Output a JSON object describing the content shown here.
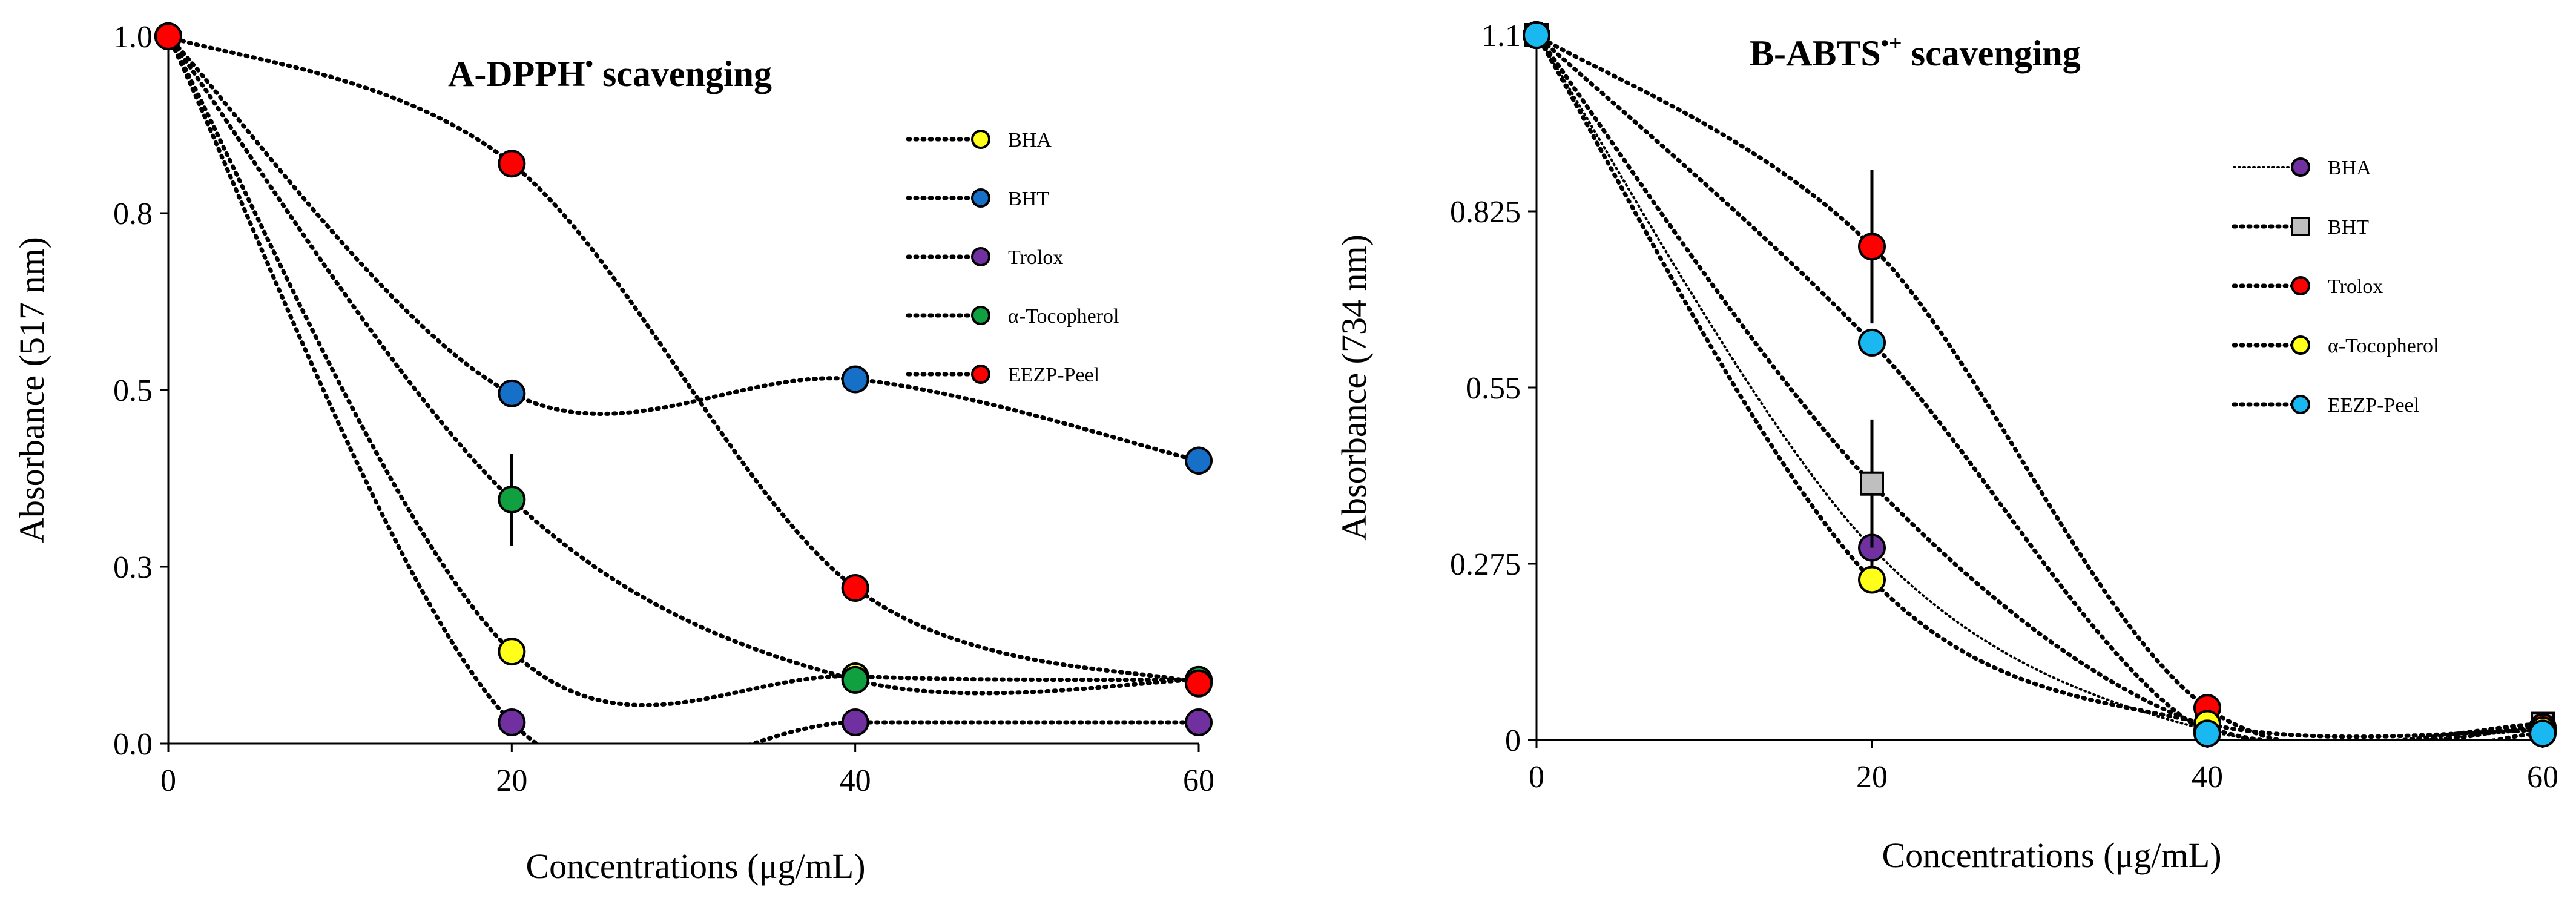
{
  "chart_data": [
    {
      "type": "line",
      "title": "A-DPPH",
      "title_superscript": "•",
      "title_suffix": " scavenging",
      "xlabel": "Concentrations (μg/mL)",
      "ylabel": "Absorbance (517 nm)",
      "x": [
        0,
        20,
        40,
        60
      ],
      "xticks": [
        "0",
        "20",
        "40",
        "60"
      ],
      "ylim": [
        0,
        1.0
      ],
      "yticks": [
        {
          "v": 0,
          "label": "0.0"
        },
        {
          "v": 0.25,
          "label": "0.3"
        },
        {
          "v": 0.5,
          "label": "0.5"
        },
        {
          "v": 0.75,
          "label": "0.8"
        },
        {
          "v": 1.0,
          "label": "1.0"
        }
      ],
      "series": [
        {
          "name": "BHA",
          "color": "#ffff1a",
          "marker": "circle",
          "values": [
            1.0,
            0.13,
            0.095,
            0.09
          ]
        },
        {
          "name": "BHT",
          "color": "#1670c8",
          "marker": "circle",
          "values": [
            1.0,
            0.495,
            0.515,
            0.4
          ],
          "errors": [
            0,
            0,
            0,
            0.02
          ]
        },
        {
          "name": "Trolox",
          "color": "#7030a0",
          "marker": "circle",
          "values": [
            1.0,
            0.03,
            0.03,
            0.03
          ]
        },
        {
          "name": "α-Tocopherol",
          "color": "#10a040",
          "marker": "circle",
          "values": [
            1.0,
            0.345,
            0.09,
            0.09
          ],
          "errors": [
            0,
            0.065,
            0,
            0
          ]
        },
        {
          "name": "EEZP-Peel",
          "color": "#ff0000",
          "marker": "circle",
          "values": [
            1.0,
            0.82,
            0.22,
            0.085
          ]
        }
      ]
    },
    {
      "type": "line",
      "title": "B-ABTS",
      "title_superscript": "•+",
      "title_suffix": " scavenging",
      "xlabel": "Concentrations (μg/mL)",
      "ylabel": "Absorbance (734 nm)",
      "x": [
        0,
        20,
        40,
        60
      ],
      "xticks": [
        "0",
        "20",
        "40",
        "60"
      ],
      "ylim": [
        0,
        1.1
      ],
      "yticks": [
        {
          "v": 0,
          "label": "0"
        },
        {
          "v": 0.275,
          "label": "0.275"
        },
        {
          "v": 0.55,
          "label": "0.55"
        },
        {
          "v": 0.825,
          "label": "0.825"
        },
        {
          "v": 1.1,
          "label": "1.1"
        }
      ],
      "series": [
        {
          "name": "BHA",
          "color": "#7030a0",
          "marker": "circle",
          "line": "thin",
          "values": [
            1.1,
            0.3,
            0.015,
            0.015
          ],
          "errors": [
            0,
            0.045,
            0,
            0
          ]
        },
        {
          "name": "BHT",
          "color": "#bfbfbf",
          "marker": "square",
          "values": [
            1.1,
            0.4,
            0.02,
            0.025
          ],
          "errors": [
            0,
            0.1,
            0,
            0
          ]
        },
        {
          "name": "Trolox",
          "color": "#ff0000",
          "marker": "circle",
          "values": [
            1.1,
            0.77,
            0.05,
            0.02
          ],
          "errors": [
            0,
            0.12,
            0,
            0
          ]
        },
        {
          "name": "α-Tocopherol",
          "color": "#ffff1a",
          "marker": "circle",
          "values": [
            1.1,
            0.25,
            0.025,
            0.015
          ]
        },
        {
          "name": "EEZP-Peel",
          "color": "#19b8f0",
          "marker": "circle",
          "values": [
            1.1,
            0.62,
            0.01,
            0.01
          ]
        }
      ]
    }
  ]
}
